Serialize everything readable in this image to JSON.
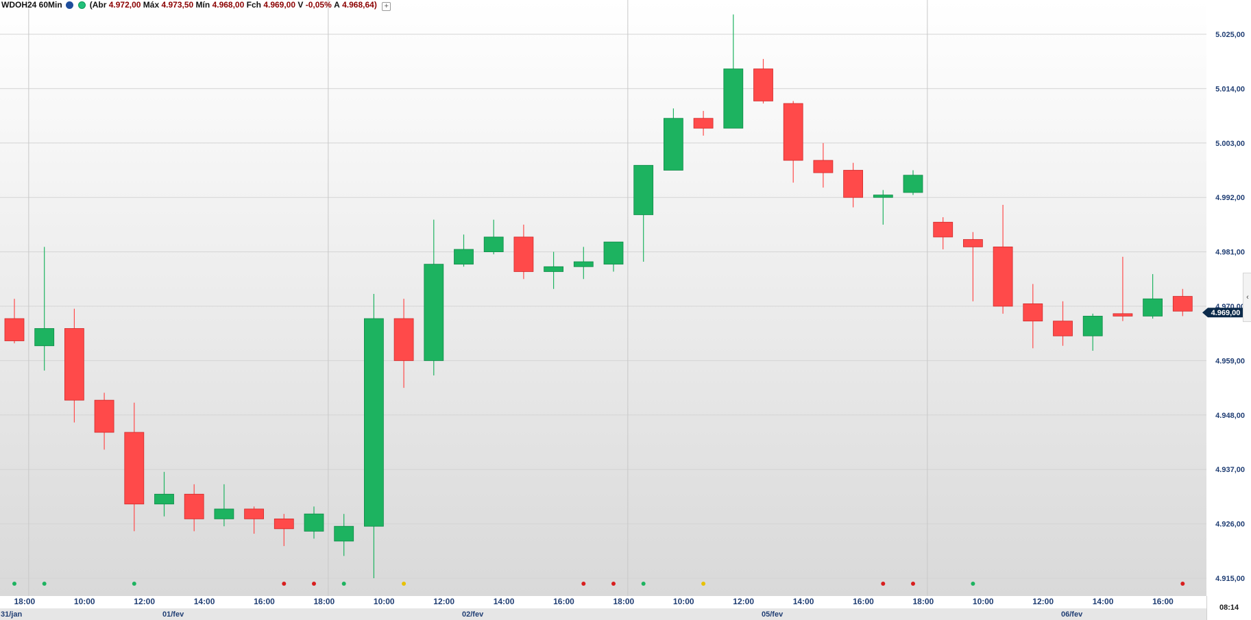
{
  "header": {
    "symbol": "WDOH24 60Min",
    "open_label": "(Abr",
    "open": "4.972,00",
    "high_label": "Máx",
    "high": "4.973,50",
    "low_label": "Mín",
    "low": "4.968,00",
    "close_label": "Fch",
    "close": "4.969,00",
    "var_label": "V",
    "var": "-0,05%",
    "avg_label": "A",
    "avg": "4.968,64)"
  },
  "current_price": "4.969,00",
  "clock": "08:14",
  "colors": {
    "up": "#1db360",
    "down": "#ff4a4a",
    "axis_text": "#1f3d73",
    "grid": "#d4d4d4",
    "signal_yellow": "#e8c100"
  },
  "chart_data": {
    "type": "candlestick",
    "title": "",
    "ylim": [
      4913,
      5028
    ],
    "y_ticks": [
      4915,
      4926,
      4937,
      4948,
      4959,
      4970,
      4981,
      4992,
      5003,
      5014,
      5025
    ],
    "y_tick_labels": [
      "4.915,00",
      "4.926,00",
      "4.937,00",
      "4.948,00",
      "4.959,00",
      "4.970,00",
      "4.981,00",
      "4.992,00",
      "5.003,00",
      "5.014,00",
      "5.025,00"
    ],
    "x_ticks": [
      {
        "label": "18:00",
        "i": 0.34
      },
      {
        "label": "10:00",
        "i": 2.34
      },
      {
        "label": "12:00",
        "i": 4.34
      },
      {
        "label": "14:00",
        "i": 6.34
      },
      {
        "label": "16:00",
        "i": 8.34
      },
      {
        "label": "18:00",
        "i": 10.34
      },
      {
        "label": "10:00",
        "i": 12.34
      },
      {
        "label": "12:00",
        "i": 14.34
      },
      {
        "label": "14:00",
        "i": 16.34
      },
      {
        "label": "16:00",
        "i": 18.34
      },
      {
        "label": "18:00",
        "i": 20.34
      },
      {
        "label": "10:00",
        "i": 22.34
      },
      {
        "label": "12:00",
        "i": 24.34
      },
      {
        "label": "14:00",
        "i": 26.34
      },
      {
        "label": "16:00",
        "i": 28.34
      },
      {
        "label": "18:00",
        "i": 30.34
      },
      {
        "label": "10:00",
        "i": 32.34
      },
      {
        "label": "12:00",
        "i": 34.34
      },
      {
        "label": "14:00",
        "i": 36.34
      },
      {
        "label": "16:00",
        "i": 38.34
      }
    ],
    "date_labels": [
      {
        "label": "31/jan",
        "i": -0.5
      },
      {
        "label": "01/fev",
        "i": 5.3
      },
      {
        "label": "02/fev",
        "i": 15.3
      },
      {
        "label": "05/fev",
        "i": 25.3
      },
      {
        "label": "06/fev",
        "i": 35.3
      }
    ],
    "day_separators": [
      0.5,
      10.5,
      20.5,
      30.5
    ],
    "candles": [
      {
        "t": "31/jan 17:00",
        "o": 4967.5,
        "h": 4971.5,
        "l": 4962.5,
        "c": 4963.0
      },
      {
        "t": "31/jan 18:00",
        "o": 4962.0,
        "h": 4982.0,
        "l": 4957.0,
        "c": 4965.5
      },
      {
        "t": "01/fev 09:00",
        "o": 4965.5,
        "h": 4969.5,
        "l": 4946.5,
        "c": 4951.0
      },
      {
        "t": "01/fev 10:00",
        "o": 4951.0,
        "h": 4952.5,
        "l": 4941.0,
        "c": 4944.5
      },
      {
        "t": "01/fev 11:00",
        "o": 4944.5,
        "h": 4950.5,
        "l": 4924.5,
        "c": 4930.0
      },
      {
        "t": "01/fev 12:00",
        "o": 4930.0,
        "h": 4936.5,
        "l": 4927.5,
        "c": 4932.0
      },
      {
        "t": "01/fev 13:00",
        "o": 4932.0,
        "h": 4934.0,
        "l": 4924.5,
        "c": 4927.0
      },
      {
        "t": "01/fev 14:00",
        "o": 4927.0,
        "h": 4934.0,
        "l": 4925.5,
        "c": 4929.0
      },
      {
        "t": "01/fev 15:00",
        "o": 4929.0,
        "h": 4929.5,
        "l": 4924.0,
        "c": 4927.0
      },
      {
        "t": "01/fev 16:00",
        "o": 4927.0,
        "h": 4928.0,
        "l": 4921.5,
        "c": 4925.0
      },
      {
        "t": "01/fev 17:00",
        "o": 4924.5,
        "h": 4929.5,
        "l": 4923.0,
        "c": 4928.0
      },
      {
        "t": "01/fev 18:00",
        "o": 4922.5,
        "h": 4928.0,
        "l": 4919.5,
        "c": 4925.5
      },
      {
        "t": "02/fev 09:00",
        "o": 4925.5,
        "h": 4972.5,
        "l": 4915.0,
        "c": 4967.5
      },
      {
        "t": "02/fev 10:00",
        "o": 4967.5,
        "h": 4971.5,
        "l": 4953.5,
        "c": 4959.0
      },
      {
        "t": "02/fev 11:00",
        "o": 4959.0,
        "h": 4987.5,
        "l": 4956.0,
        "c": 4978.5
      },
      {
        "t": "02/fev 12:00",
        "o": 4978.5,
        "h": 4984.5,
        "l": 4978.0,
        "c": 4981.5
      },
      {
        "t": "02/fev 13:00",
        "o": 4981.0,
        "h": 4987.5,
        "l": 4980.5,
        "c": 4984.0
      },
      {
        "t": "02/fev 14:00",
        "o": 4984.0,
        "h": 4986.5,
        "l": 4975.5,
        "c": 4977.0
      },
      {
        "t": "02/fev 15:00",
        "o": 4977.0,
        "h": 4981.0,
        "l": 4973.5,
        "c": 4978.0
      },
      {
        "t": "02/fev 16:00",
        "o": 4978.0,
        "h": 4982.0,
        "l": 4975.5,
        "c": 4979.0
      },
      {
        "t": "02/fev 17:00",
        "o": 4978.5,
        "h": 4983.0,
        "l": 4977.0,
        "c": 4983.0
      },
      {
        "t": "05/fev 09:00",
        "o": 4988.5,
        "h": 4998.5,
        "l": 4979.0,
        "c": 4998.5
      },
      {
        "t": "05/fev 10:00",
        "o": 4997.5,
        "h": 5010.0,
        "l": 4997.5,
        "c": 5008.0
      },
      {
        "t": "05/fev 11:00",
        "o": 5008.0,
        "h": 5009.5,
        "l": 5004.5,
        "c": 5006.0
      },
      {
        "t": "05/fev 12:00",
        "o": 5006.0,
        "h": 5029.0,
        "l": 5006.0,
        "c": 5018.0
      },
      {
        "t": "05/fev 13:00",
        "o": 5018.0,
        "h": 5020.0,
        "l": 5011.0,
        "c": 5011.5
      },
      {
        "t": "05/fev 14:00",
        "o": 5011.0,
        "h": 5011.5,
        "l": 4995.0,
        "c": 4999.5
      },
      {
        "t": "05/fev 15:00",
        "o": 4999.5,
        "h": 5003.0,
        "l": 4994.0,
        "c": 4997.0
      },
      {
        "t": "05/fev 16:00",
        "o": 4997.5,
        "h": 4999.0,
        "l": 4990.0,
        "c": 4992.0
      },
      {
        "t": "05/fev 17:00",
        "o": 4992.0,
        "h": 4993.5,
        "l": 4986.5,
        "c": 4992.5
      },
      {
        "t": "05/fev 18:00",
        "o": 4993.0,
        "h": 4997.5,
        "l": 4992.5,
        "c": 4996.5
      },
      {
        "t": "06/fev 09:00",
        "o": 4987.0,
        "h": 4988.0,
        "l": 4981.5,
        "c": 4984.0
      },
      {
        "t": "06/fev 10:00",
        "o": 4983.5,
        "h": 4985.0,
        "l": 4971.0,
        "c": 4982.0
      },
      {
        "t": "06/fev 11:00",
        "o": 4982.0,
        "h": 4990.5,
        "l": 4968.5,
        "c": 4970.0
      },
      {
        "t": "06/fev 12:00",
        "o": 4970.5,
        "h": 4974.5,
        "l": 4961.5,
        "c": 4967.0
      },
      {
        "t": "06/fev 13:00",
        "o": 4967.0,
        "h": 4971.0,
        "l": 4962.0,
        "c": 4964.0
      },
      {
        "t": "06/fev 14:00",
        "o": 4964.0,
        "h": 4968.5,
        "l": 4961.0,
        "c": 4968.0
      },
      {
        "t": "06/fev 15:00",
        "o": 4968.5,
        "h": 4980.0,
        "l": 4967.0,
        "c": 4968.0
      },
      {
        "t": "06/fev 16:00",
        "o": 4968.0,
        "h": 4976.5,
        "l": 4967.5,
        "c": 4971.5
      },
      {
        "t": "06/fev 17:00",
        "o": 4972.0,
        "h": 4973.5,
        "l": 4968.0,
        "c": 4969.0
      }
    ],
    "signals": [
      {
        "i": 0,
        "color": "green"
      },
      {
        "i": 1,
        "color": "green"
      },
      {
        "i": 4,
        "color": "green"
      },
      {
        "i": 9,
        "color": "red"
      },
      {
        "i": 10,
        "color": "red"
      },
      {
        "i": 11,
        "color": "green"
      },
      {
        "i": 13,
        "color": "yellow"
      },
      {
        "i": 19,
        "color": "red"
      },
      {
        "i": 20,
        "color": "red"
      },
      {
        "i": 21,
        "color": "green"
      },
      {
        "i": 23,
        "color": "yellow"
      },
      {
        "i": 29,
        "color": "red"
      },
      {
        "i": 30,
        "color": "red"
      },
      {
        "i": 32,
        "color": "green"
      },
      {
        "i": 39,
        "color": "red"
      }
    ],
    "grid": true,
    "legend": "none"
  }
}
